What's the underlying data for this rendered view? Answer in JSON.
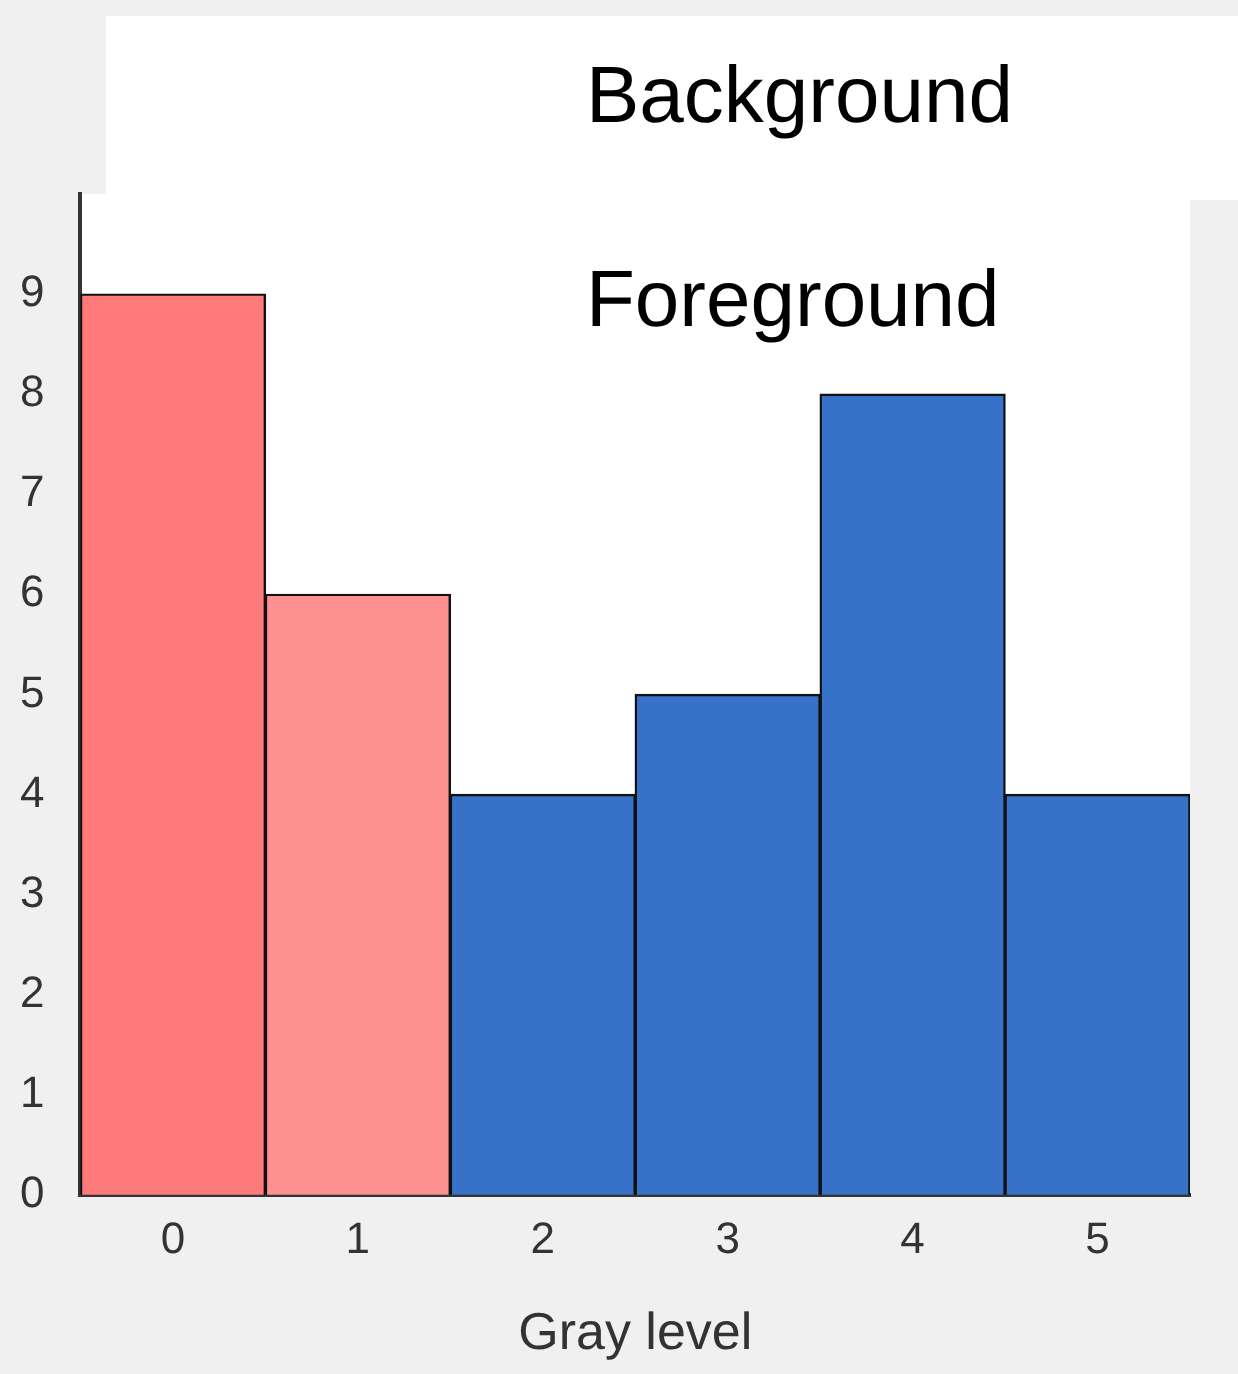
{
  "chart_data": {
    "type": "bar",
    "xlabel": "Gray level",
    "categories": [
      "0",
      "1",
      "2",
      "3",
      "4",
      "5"
    ],
    "values": [
      9,
      6,
      4,
      5,
      8,
      4
    ],
    "colors": [
      "#ff7b7b",
      "#ff9090",
      "#3871c8",
      "#3871c8",
      "#3871c8",
      "#3871c8"
    ],
    "ylim": [
      0,
      10
    ],
    "yticks": [
      0,
      1,
      2,
      3,
      4,
      5,
      6,
      7,
      8,
      9
    ],
    "grid": false,
    "annotations": [
      "Background",
      "Foreground"
    ]
  }
}
